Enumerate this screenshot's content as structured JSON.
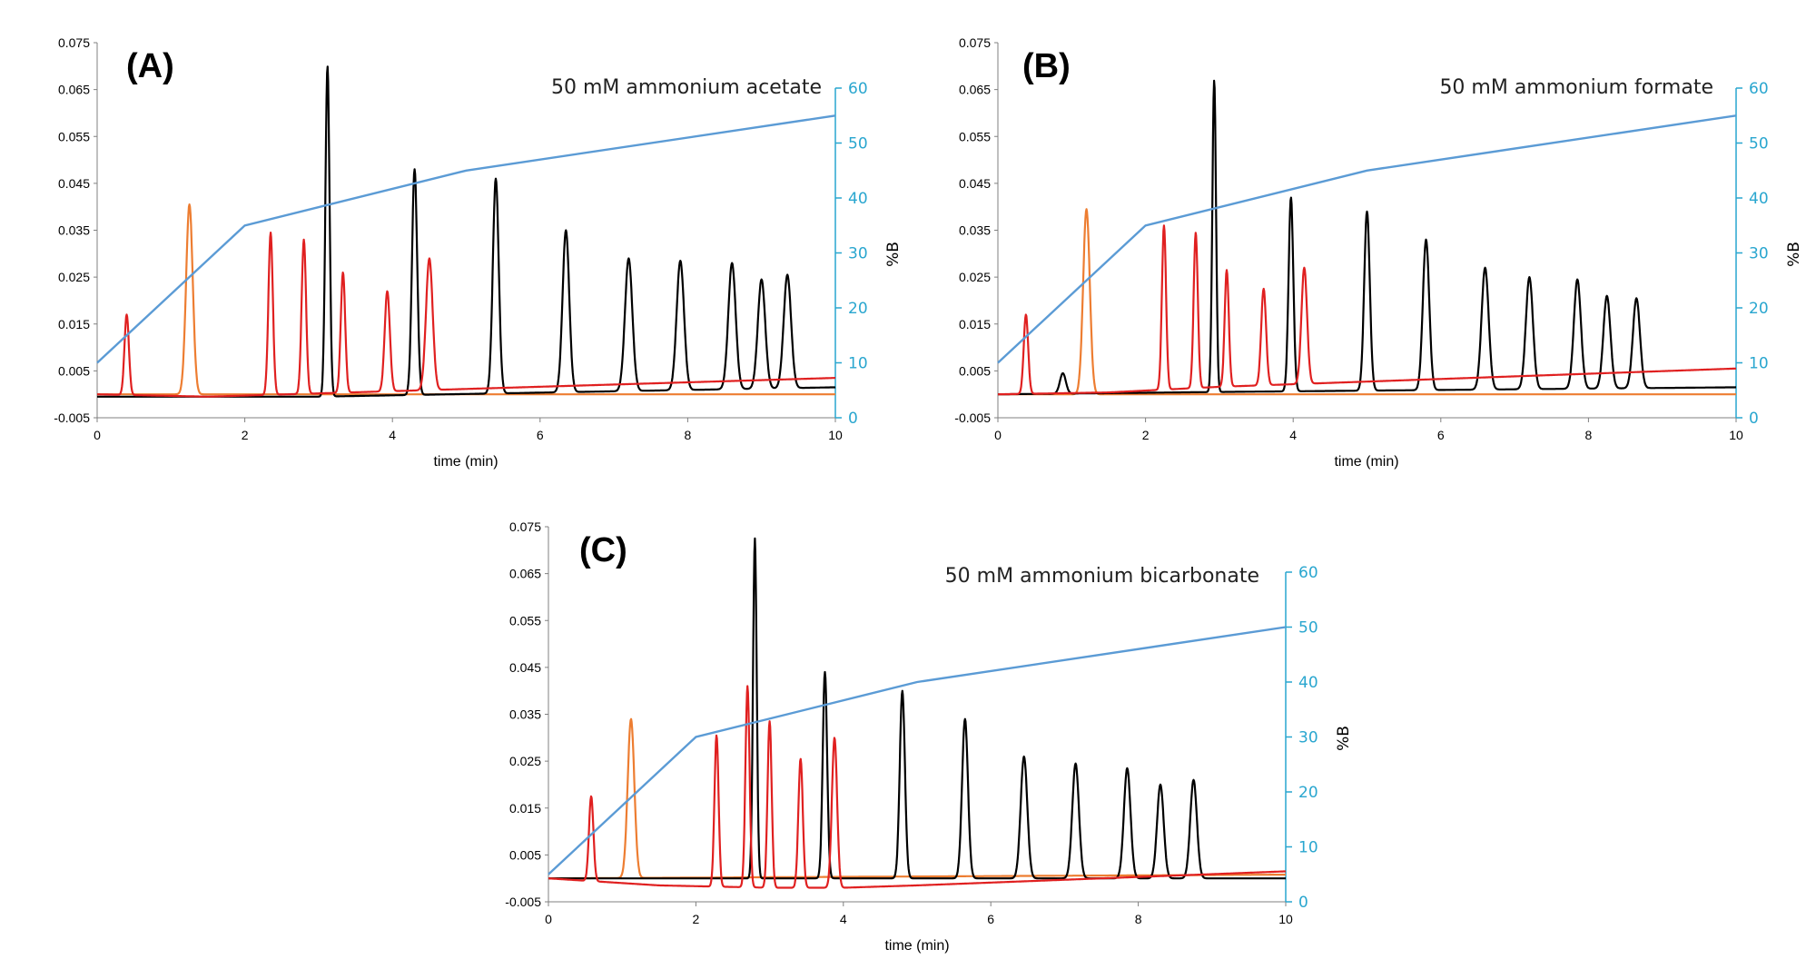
{
  "colors": {
    "gradient": "#5b9bd5",
    "right_axis": "#29a6cf",
    "black": "#000000",
    "red": "#e02020",
    "orange": "#ed7d31"
  },
  "chart_data": [
    {
      "type": "line",
      "panel_label": "(A)",
      "annotation": "50 mM ammonium acetate",
      "xlabel": "time (min)",
      "ylabel_right": "%B",
      "xlim": [
        0,
        10
      ],
      "ylim": [
        -0.005,
        0.075
      ],
      "ylim_right": [
        0,
        60
      ],
      "x_ticks": [
        "0",
        "2",
        "4",
        "6",
        "8",
        "10"
      ],
      "y_ticks": [
        "0.075",
        "0.065",
        "0.055",
        "0.045",
        "0.035",
        "0.025",
        "0.015",
        "0.005",
        "-0.005"
      ],
      "y_right_ticks": [
        "60",
        "50",
        "40",
        "30",
        "20",
        "10",
        "0"
      ],
      "gradient": [
        [
          0,
          10
        ],
        [
          2,
          35
        ],
        [
          5,
          45
        ],
        [
          10,
          55
        ]
      ],
      "series": [
        {
          "name": "black",
          "baseline": [
            [
              0,
              -0.0005
            ],
            [
              3,
              -0.0005
            ],
            [
              10,
              0.0015
            ]
          ],
          "peaks": [
            [
              3.12,
              0.07,
              0.028
            ],
            [
              4.3,
              0.048,
              0.035
            ],
            [
              5.4,
              0.046,
              0.04
            ],
            [
              6.35,
              0.035,
              0.045
            ],
            [
              7.2,
              0.029,
              0.05
            ],
            [
              7.9,
              0.0285,
              0.05
            ],
            [
              8.6,
              0.028,
              0.05
            ],
            [
              9.0,
              0.0245,
              0.05
            ],
            [
              9.35,
              0.0255,
              0.05
            ]
          ]
        },
        {
          "name": "red",
          "baseline": [
            [
              0,
              0
            ],
            [
              1.5,
              -0.0005
            ],
            [
              3,
              0.0002
            ],
            [
              10,
              0.0035
            ]
          ],
          "peaks": [
            [
              0.4,
              0.017,
              0.03
            ],
            [
              2.35,
              0.0345,
              0.03
            ],
            [
              2.8,
              0.033,
              0.03
            ],
            [
              3.33,
              0.026,
              0.03
            ],
            [
              3.93,
              0.022,
              0.035
            ],
            [
              4.5,
              0.029,
              0.045
            ]
          ]
        },
        {
          "name": "orange",
          "baseline": [
            [
              0,
              0
            ],
            [
              10,
              0
            ]
          ],
          "peaks": [
            [
              1.25,
              0.0405,
              0.045
            ]
          ]
        }
      ]
    },
    {
      "type": "line",
      "panel_label": "(B)",
      "annotation": "50 mM ammonium formate",
      "xlabel": "time (min)",
      "ylabel_right": "%B",
      "xlim": [
        0,
        10
      ],
      "ylim": [
        -0.005,
        0.075
      ],
      "ylim_right": [
        0,
        60
      ],
      "x_ticks": [
        "0",
        "2",
        "4",
        "6",
        "8",
        "10"
      ],
      "y_ticks": [
        "0.075",
        "0.065",
        "0.055",
        "0.045",
        "0.035",
        "0.025",
        "0.015",
        "0.005",
        "-0.005"
      ],
      "y_right_ticks": [
        "60",
        "50",
        "40",
        "30",
        "20",
        "10",
        "0"
      ],
      "gradient": [
        [
          0,
          10
        ],
        [
          2,
          35
        ],
        [
          5,
          45
        ],
        [
          10,
          55
        ]
      ],
      "series": [
        {
          "name": "black",
          "baseline": [
            [
              0,
              0
            ],
            [
              3,
              0.0005
            ],
            [
              10,
              0.0015
            ]
          ],
          "peaks": [
            [
              0.88,
              0.0045,
              0.04
            ],
            [
              2.93,
              0.067,
              0.025
            ],
            [
              3.97,
              0.042,
              0.032
            ],
            [
              5.0,
              0.039,
              0.038
            ],
            [
              5.8,
              0.033,
              0.043
            ],
            [
              6.6,
              0.027,
              0.048
            ],
            [
              7.2,
              0.025,
              0.048
            ],
            [
              7.85,
              0.0245,
              0.048
            ],
            [
              8.25,
              0.021,
              0.048
            ],
            [
              8.65,
              0.0205,
              0.048
            ]
          ]
        },
        {
          "name": "red",
          "baseline": [
            [
              0,
              0
            ],
            [
              1.5,
              0.0004
            ],
            [
              3,
              0.0016
            ],
            [
              10,
              0.0055
            ]
          ],
          "peaks": [
            [
              0.38,
              0.017,
              0.03
            ],
            [
              2.25,
              0.036,
              0.028
            ],
            [
              2.68,
              0.0345,
              0.028
            ],
            [
              3.1,
              0.0265,
              0.028
            ],
            [
              3.6,
              0.0225,
              0.033
            ],
            [
              4.15,
              0.027,
              0.038
            ]
          ]
        },
        {
          "name": "orange",
          "baseline": [
            [
              0,
              0
            ],
            [
              10,
              0
            ]
          ],
          "peaks": [
            [
              1.2,
              0.0395,
              0.045
            ]
          ]
        }
      ]
    },
    {
      "type": "line",
      "panel_label": "(C)",
      "annotation": "50 mM ammonium bicarbonate",
      "xlabel": "time (min)",
      "ylabel_right": "%B",
      "xlim": [
        0,
        10
      ],
      "ylim": [
        -0.005,
        0.075
      ],
      "ylim_right": [
        0,
        60
      ],
      "x_ticks": [
        "0",
        "2",
        "4",
        "6",
        "8",
        "10"
      ],
      "y_ticks": [
        "0.075",
        "0.065",
        "0.055",
        "0.045",
        "0.035",
        "0.025",
        "0.015",
        "0.005",
        "-0.005"
      ],
      "y_right_ticks": [
        "60",
        "50",
        "40",
        "30",
        "20",
        "10",
        "0"
      ],
      "gradient": [
        [
          0,
          5
        ],
        [
          2,
          30
        ],
        [
          5,
          40
        ],
        [
          10,
          50
        ]
      ],
      "series": [
        {
          "name": "black",
          "baseline": [
            [
              0,
              0
            ],
            [
              10,
              0
            ]
          ],
          "peaks": [
            [
              2.8,
              0.0725,
              0.025
            ],
            [
              3.75,
              0.044,
              0.03
            ],
            [
              4.8,
              0.04,
              0.035
            ],
            [
              5.65,
              0.034,
              0.04
            ],
            [
              6.45,
              0.026,
              0.045
            ],
            [
              7.15,
              0.0245,
              0.045
            ],
            [
              7.85,
              0.0235,
              0.045
            ],
            [
              8.3,
              0.02,
              0.045
            ],
            [
              8.75,
              0.021,
              0.045
            ]
          ]
        },
        {
          "name": "red",
          "baseline": [
            [
              0,
              0
            ],
            [
              1.5,
              -0.0015
            ],
            [
              3,
              -0.002
            ],
            [
              4,
              -0.002
            ],
            [
              5,
              -0.0015
            ],
            [
              10,
              0.0015
            ]
          ],
          "peaks": [
            [
              0.58,
              0.0175,
              0.03
            ],
            [
              2.28,
              0.0305,
              0.028
            ],
            [
              2.7,
              0.041,
              0.028
            ],
            [
              3.0,
              0.0335,
              0.028
            ],
            [
              3.42,
              0.0255,
              0.03
            ],
            [
              3.88,
              0.03,
              0.035
            ]
          ]
        },
        {
          "name": "orange",
          "baseline": [
            [
              0,
              0
            ],
            [
              10,
              0.0008
            ]
          ],
          "peaks": [
            [
              1.12,
              0.034,
              0.045
            ]
          ]
        }
      ]
    }
  ]
}
